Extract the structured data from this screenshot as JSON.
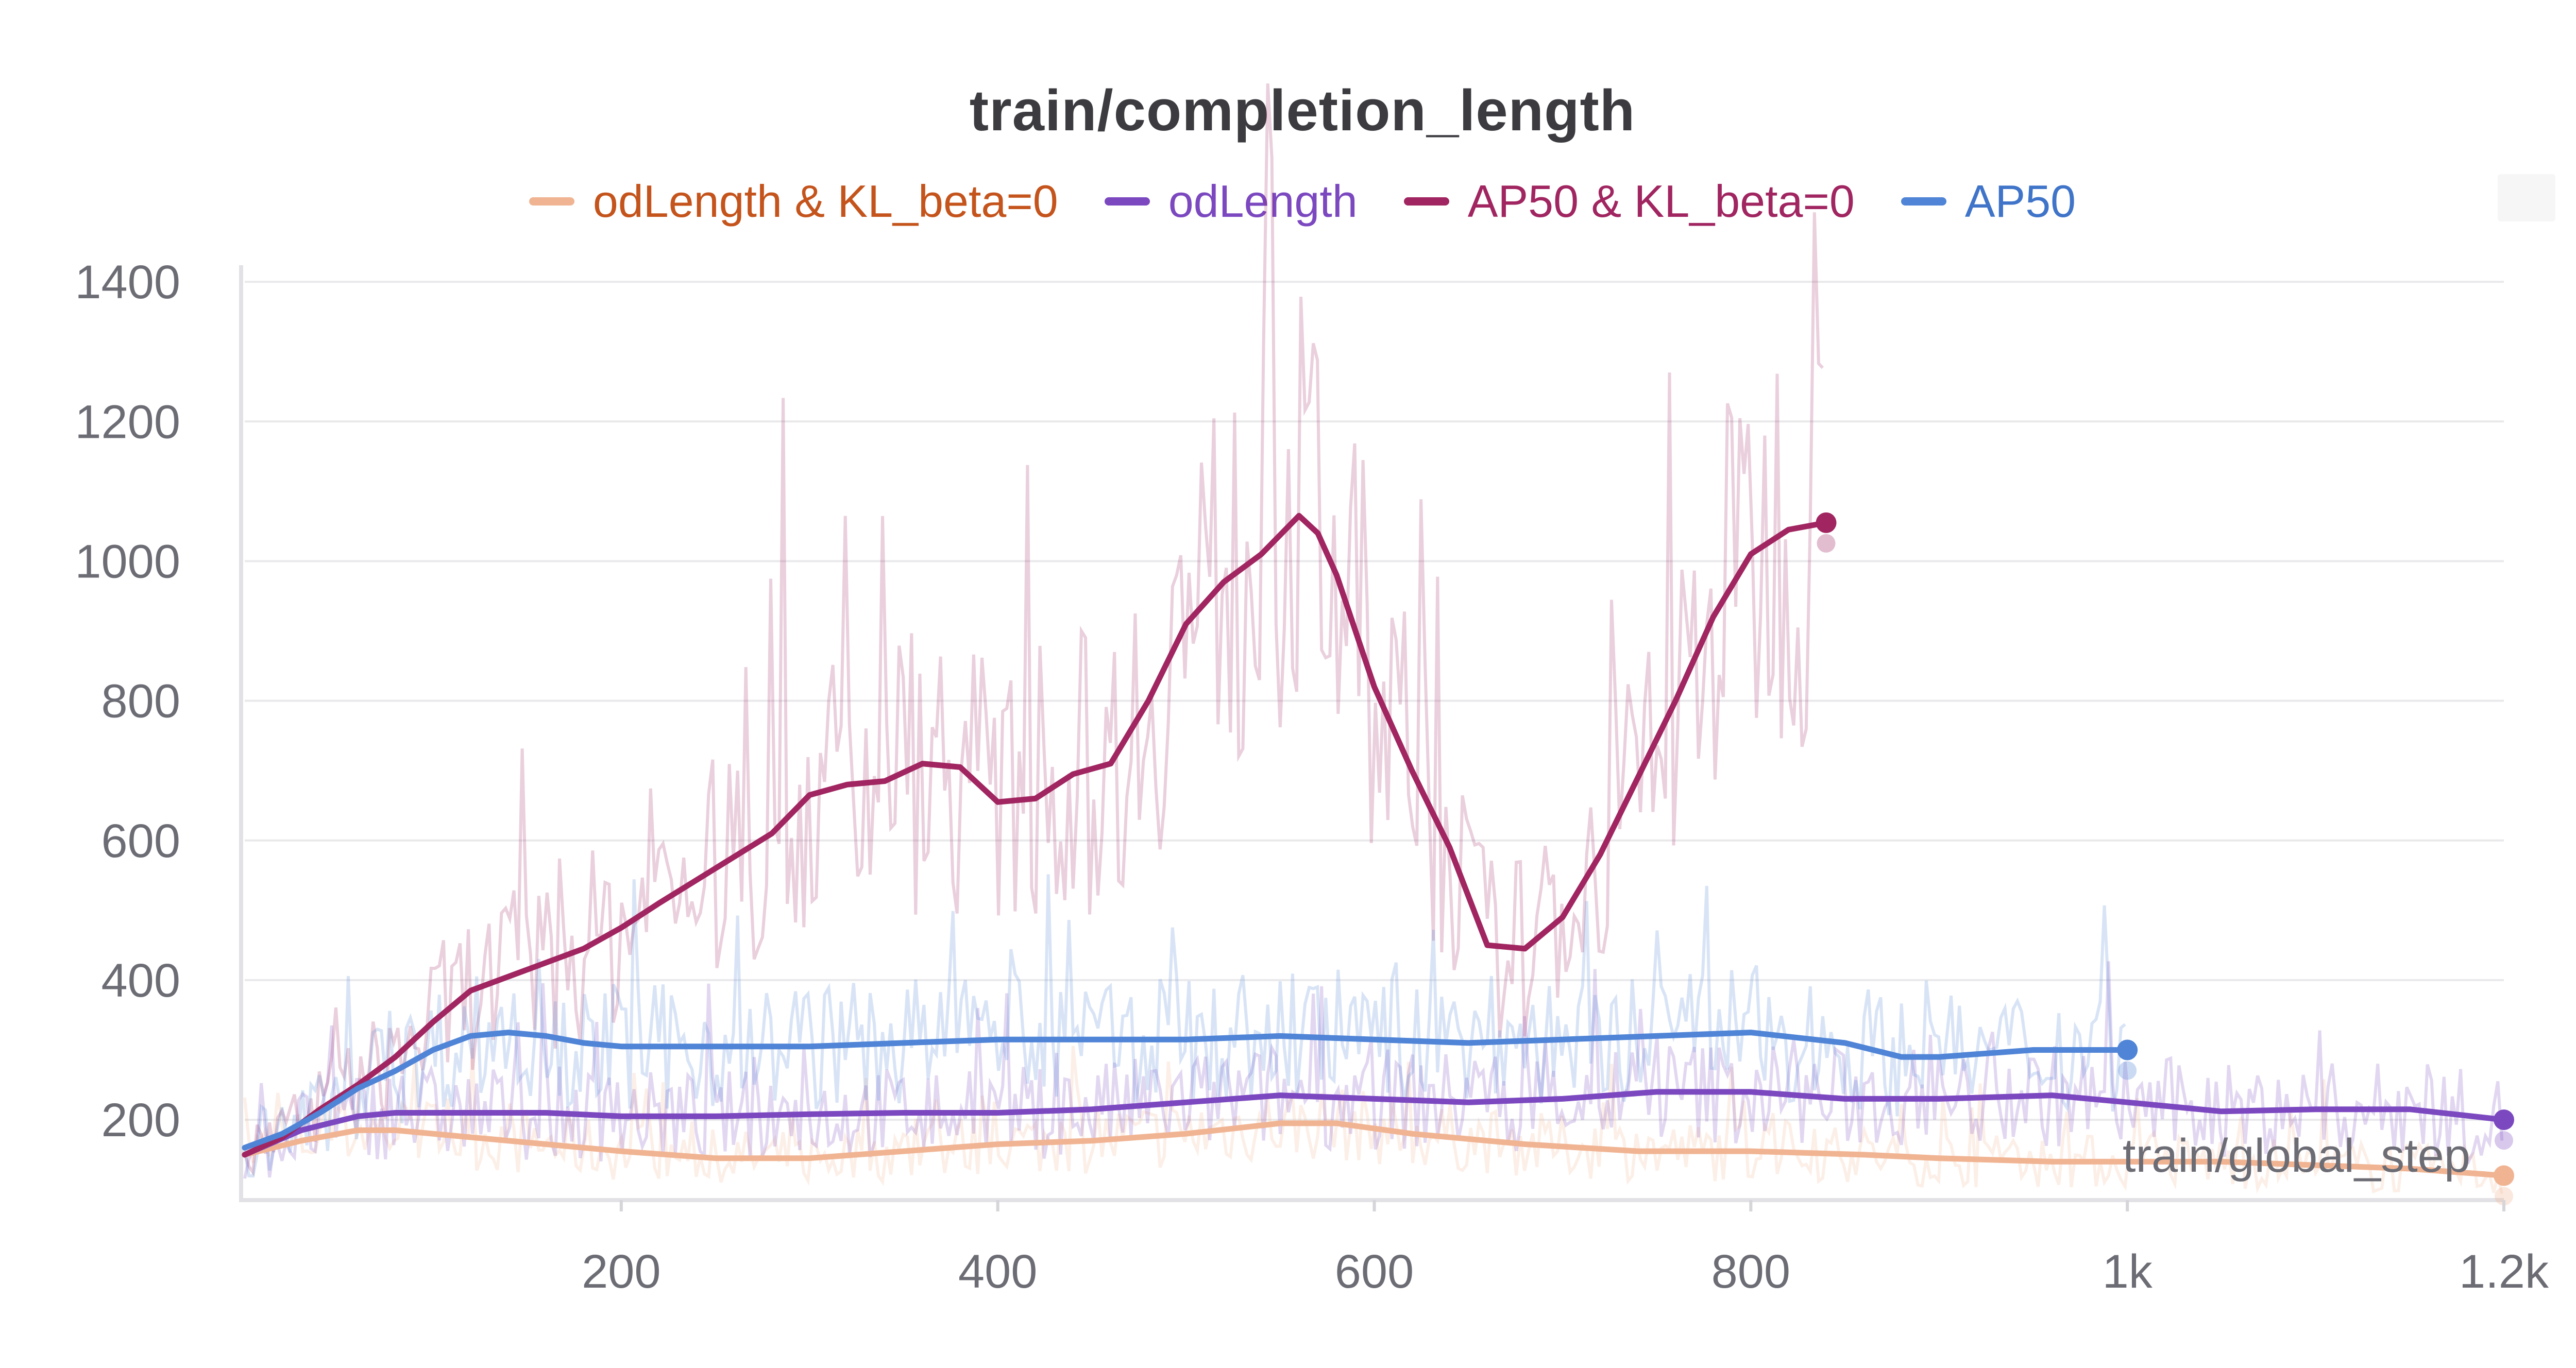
{
  "chart_data": {
    "type": "line",
    "title": "train/completion_length",
    "xlabel": "train/global_step",
    "ylabel": "",
    "xlim": [
      0,
      1200
    ],
    "ylim": [
      85,
      1420
    ],
    "x_ticks": [
      200,
      400,
      600,
      800,
      1000,
      1200
    ],
    "x_tick_labels": [
      "200",
      "400",
      "600",
      "800",
      "1k",
      "1.2k"
    ],
    "y_ticks": [
      200,
      400,
      600,
      800,
      1000,
      1200,
      1400
    ],
    "y_tick_labels": [
      "200",
      "400",
      "600",
      "800",
      "1000",
      "1200",
      "1400"
    ],
    "grid": true,
    "legend_position": "top-center",
    "series": [
      {
        "name": "odLength & KL_beta=0",
        "color": "#f0b493",
        "label_color": "#c4541c",
        "x": [
          0,
          30,
          60,
          80,
          120,
          160,
          200,
          250,
          300,
          350,
          400,
          450,
          500,
          550,
          580,
          620,
          680,
          740,
          800,
          860,
          900,
          960,
          1000,
          1050,
          1100,
          1150,
          1200
        ],
        "values": [
          150,
          170,
          185,
          185,
          175,
          165,
          155,
          145,
          145,
          155,
          165,
          170,
          180,
          195,
          195,
          180,
          165,
          155,
          155,
          150,
          145,
          140,
          140,
          140,
          135,
          130,
          120
        ]
      },
      {
        "name": "odLength",
        "color": "#7b48c0",
        "label_color": "#7b48c0",
        "x": [
          0,
          30,
          60,
          80,
          120,
          160,
          200,
          250,
          300,
          350,
          400,
          450,
          500,
          550,
          600,
          650,
          700,
          750,
          800,
          850,
          900,
          960,
          1000,
          1050,
          1100,
          1150,
          1200
        ],
        "values": [
          150,
          185,
          205,
          210,
          210,
          210,
          205,
          205,
          208,
          210,
          210,
          215,
          225,
          235,
          230,
          225,
          230,
          240,
          240,
          230,
          230,
          235,
          225,
          212,
          215,
          215,
          200
        ]
      },
      {
        "name": "AP50 & KL_beta=0",
        "color": "#a02560",
        "label_color": "#a02560",
        "x": [
          0,
          20,
          40,
          60,
          80,
          100,
          120,
          150,
          180,
          200,
          220,
          250,
          280,
          300,
          320,
          340,
          360,
          380,
          400,
          420,
          440,
          460,
          480,
          500,
          520,
          540,
          560,
          570,
          580,
          600,
          620,
          640,
          660,
          680,
          700,
          720,
          740,
          760,
          780,
          800,
          820,
          840
        ],
        "values": [
          150,
          175,
          215,
          250,
          290,
          340,
          385,
          415,
          445,
          475,
          510,
          560,
          610,
          665,
          680,
          685,
          710,
          705,
          655,
          660,
          695,
          710,
          800,
          910,
          970,
          1010,
          1065,
          1040,
          980,
          820,
          700,
          590,
          450,
          445,
          490,
          580,
          690,
          800,
          920,
          1010,
          1045,
          1055
        ]
      },
      {
        "name": "AP50",
        "color": "#4f84d6",
        "label_color": "#3f74c9",
        "x": [
          0,
          20,
          40,
          60,
          80,
          100,
          120,
          140,
          160,
          180,
          200,
          250,
          300,
          350,
          400,
          450,
          500,
          550,
          600,
          650,
          700,
          750,
          800,
          850,
          880,
          900,
          950,
          1000
        ],
        "values": [
          160,
          180,
          210,
          245,
          270,
          300,
          320,
          325,
          320,
          310,
          305,
          305,
          305,
          310,
          315,
          315,
          315,
          320,
          315,
          310,
          315,
          320,
          325,
          310,
          290,
          290,
          300,
          300
        ]
      }
    ]
  }
}
